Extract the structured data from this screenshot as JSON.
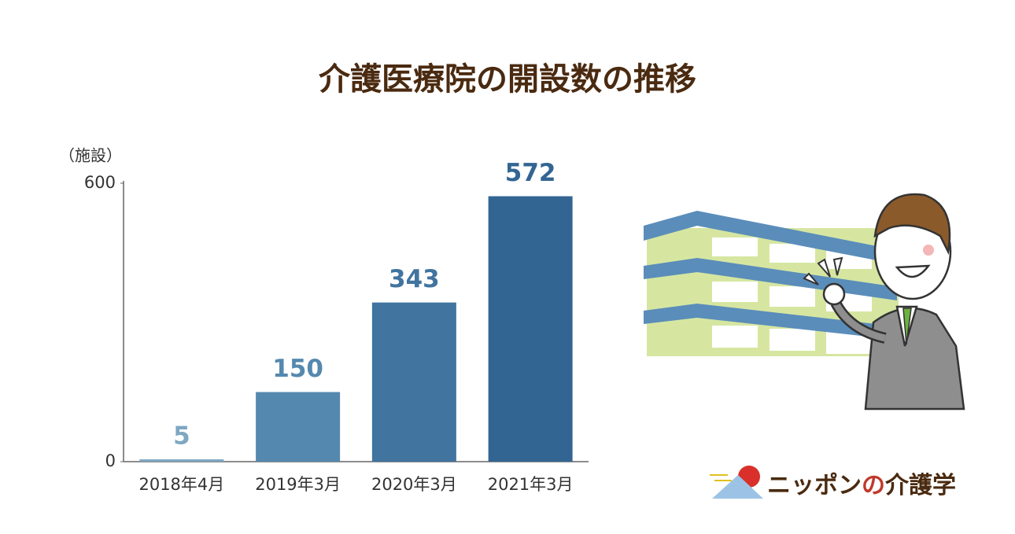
{
  "chart_data": {
    "type": "bar",
    "title": "介護医療院の開設数の推移",
    "y_axis_label": "（施設）",
    "categories": [
      "2018年4月",
      "2019年3月",
      "2020年3月",
      "2021年3月"
    ],
    "values": [
      5,
      150,
      343,
      572
    ],
    "colors": [
      "#7ea7c2",
      "#5588ae",
      "#41749f",
      "#336593"
    ],
    "ylim": [
      0,
      600
    ],
    "yticks": [
      0,
      600
    ],
    "grid": false
  },
  "logo": {
    "parts": [
      "ニッポン",
      "の",
      "介護学"
    ],
    "colors": [
      "#4a2a10",
      "#c0392b",
      "#4a2a10"
    ]
  }
}
